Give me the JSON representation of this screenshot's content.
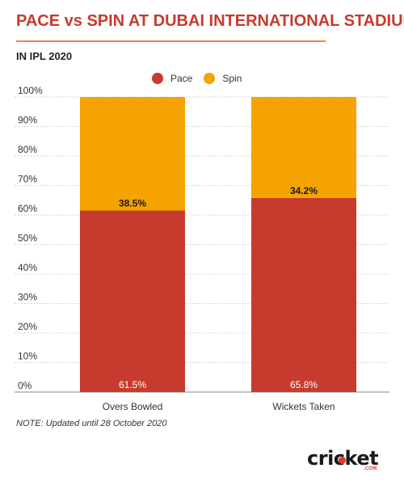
{
  "header": {
    "title": "PACE vs SPIN AT DUBAI INTERNATIONAL STADIUM",
    "subtitle": "IN IPL 2020"
  },
  "legend": {
    "items": [
      {
        "label": "Pace",
        "color": "#c63b2d"
      },
      {
        "label": "Spin",
        "color": "#f5a300"
      }
    ]
  },
  "chart_data": {
    "type": "bar",
    "stacked": true,
    "percent_axis": true,
    "categories": [
      "Overs Bowled",
      "Wickets Taken"
    ],
    "series": [
      {
        "name": "Pace",
        "values": [
          61.5,
          65.8
        ],
        "labels": [
          "61.5%",
          "65.8%"
        ],
        "color": "#c63b2d"
      },
      {
        "name": "Spin",
        "values": [
          38.5,
          34.2
        ],
        "labels": [
          "38.5%",
          "34.2%"
        ],
        "color": "#f5a300"
      }
    ],
    "yticks": [
      "0%",
      "10%",
      "20%",
      "30%",
      "40%",
      "50%",
      "60%",
      "70%",
      "80%",
      "90%",
      "100%"
    ],
    "ylim": [
      0,
      100
    ],
    "grid": true,
    "legend_position": "top-center"
  },
  "footer": {
    "note": "NOTE: Updated until 28 October 2020",
    "logo_text": "cricket",
    "logo_sub": ".COM"
  }
}
